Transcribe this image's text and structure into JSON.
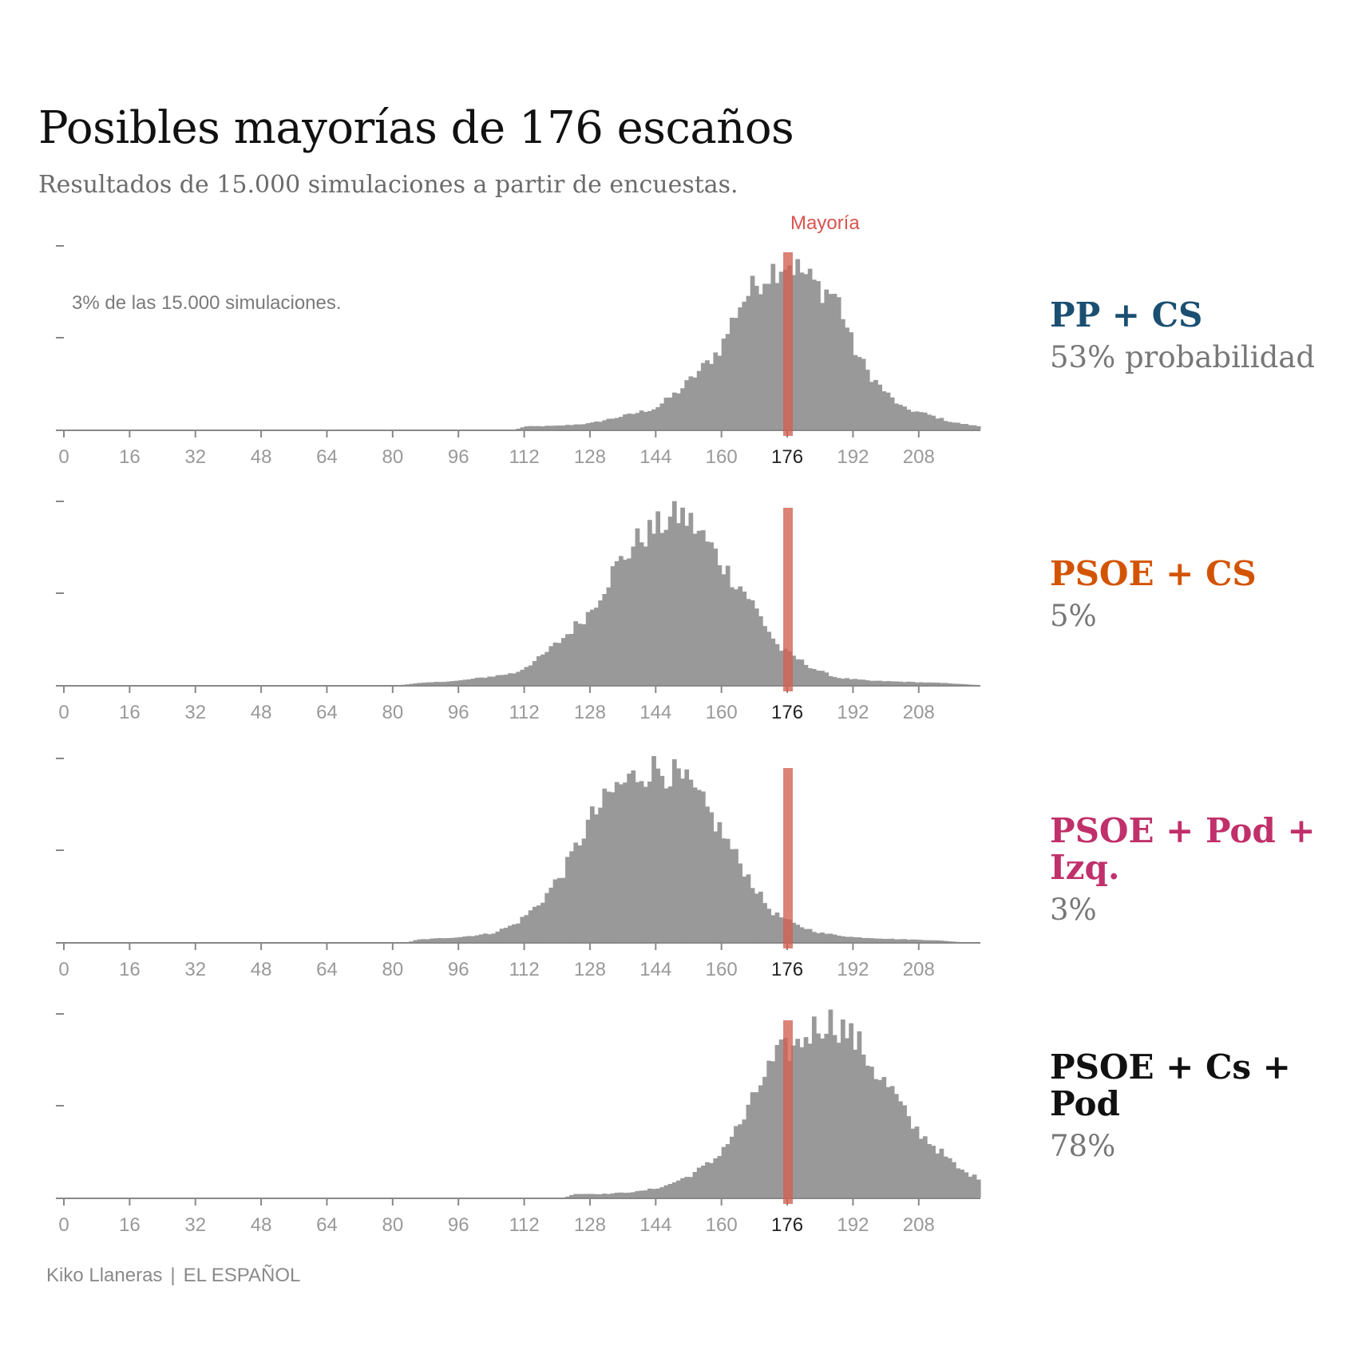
{
  "header": {
    "title": "Posibles mayorías de 176 escaños",
    "subtitle": "Resultados de 15.000 simulaciones a partir de encuestas."
  },
  "annotations": {
    "majority_label": "Mayoría",
    "unit_note": "3% de las 15.000 simulaciones."
  },
  "credit": {
    "author": "Kiko Llaneras",
    "separator": "|",
    "outlet": "EL ESPAÑOL"
  },
  "colors": {
    "bars": "#999999",
    "majority": "#d35f4f",
    "axis": "#888888",
    "tick_label": "#999999",
    "tick_label_majority": "#222222"
  },
  "chart_data": [
    {
      "type": "bar",
      "name": "PP + CS",
      "probability": "53% probabilidad",
      "color": "#1b4f72",
      "x_ticks": [
        0,
        16,
        32,
        48,
        64,
        80,
        96,
        112,
        128,
        144,
        160,
        176,
        192,
        208
      ],
      "xlim": [
        0,
        223
      ],
      "majority": 176,
      "y_unit": "% de las 15.000 simulaciones",
      "y_ticks": [
        0,
        1.5,
        3
      ],
      "profile": [
        [
          110,
          0
        ],
        [
          112,
          0.05
        ],
        [
          120,
          0.06
        ],
        [
          128,
          0.1
        ],
        [
          138,
          0.25
        ],
        [
          144,
          0.35
        ],
        [
          150,
          0.65
        ],
        [
          156,
          1.05
        ],
        [
          160,
          1.35
        ],
        [
          164,
          2.0
        ],
        [
          168,
          2.35
        ],
        [
          172,
          2.6
        ],
        [
          176,
          2.75
        ],
        [
          180,
          2.55
        ],
        [
          184,
          2.3
        ],
        [
          188,
          2.2
        ],
        [
          192,
          1.35
        ],
        [
          196,
          0.9
        ],
        [
          200,
          0.6
        ],
        [
          204,
          0.35
        ],
        [
          210,
          0.25
        ],
        [
          216,
          0.12
        ],
        [
          223,
          0.05
        ]
      ]
    },
    {
      "type": "bar",
      "name": "PSOE + CS",
      "probability": "5%",
      "color": "#d35400",
      "x_ticks": [
        0,
        16,
        32,
        48,
        64,
        80,
        96,
        112,
        128,
        144,
        160,
        176,
        192,
        208
      ],
      "xlim": [
        0,
        223
      ],
      "majority": 176,
      "y_unit": "% de las 15.000 simulaciones",
      "y_ticks": [
        0,
        1.5,
        3
      ],
      "profile": [
        [
          82,
          0
        ],
        [
          86,
          0.03
        ],
        [
          96,
          0.07
        ],
        [
          104,
          0.14
        ],
        [
          110,
          0.2
        ],
        [
          116,
          0.45
        ],
        [
          122,
          0.8
        ],
        [
          128,
          1.2
        ],
        [
          134,
          1.9
        ],
        [
          140,
          2.4
        ],
        [
          146,
          2.65
        ],
        [
          150,
          2.8
        ],
        [
          154,
          2.55
        ],
        [
          158,
          2.2
        ],
        [
          162,
          1.8
        ],
        [
          166,
          1.5
        ],
        [
          170,
          1.05
        ],
        [
          174,
          0.6
        ],
        [
          178,
          0.45
        ],
        [
          182,
          0.28
        ],
        [
          188,
          0.12
        ],
        [
          196,
          0.07
        ],
        [
          206,
          0.05
        ],
        [
          215,
          0.03
        ],
        [
          222,
          0
        ]
      ]
    },
    {
      "type": "bar",
      "name": "PSOE + Pod + Izq.",
      "probability": "3%",
      "color": "#c0306a",
      "x_ticks": [
        0,
        16,
        32,
        48,
        64,
        80,
        96,
        112,
        128,
        144,
        160,
        176,
        192,
        208
      ],
      "xlim": [
        0,
        223
      ],
      "majority": 176,
      "y_unit": "% de las 15.000 simulaciones",
      "y_ticks": [
        0,
        1.5,
        3
      ],
      "profile": [
        [
          84,
          0
        ],
        [
          86,
          0.04
        ],
        [
          96,
          0.08
        ],
        [
          104,
          0.14
        ],
        [
          110,
          0.3
        ],
        [
          116,
          0.65
        ],
        [
          122,
          1.2
        ],
        [
          128,
          2.0
        ],
        [
          134,
          2.5
        ],
        [
          140,
          2.75
        ],
        [
          144,
          2.85
        ],
        [
          148,
          2.75
        ],
        [
          152,
          2.55
        ],
        [
          156,
          2.2
        ],
        [
          160,
          1.8
        ],
        [
          164,
          1.35
        ],
        [
          168,
          0.9
        ],
        [
          172,
          0.5
        ],
        [
          178,
          0.28
        ],
        [
          184,
          0.15
        ],
        [
          192,
          0.08
        ],
        [
          202,
          0.05
        ],
        [
          212,
          0.03
        ],
        [
          218,
          0
        ]
      ]
    },
    {
      "type": "bar",
      "name": "PSOE + Cs + Pod",
      "probability": "78%",
      "color": "#111111",
      "x_ticks": [
        0,
        16,
        32,
        48,
        64,
        80,
        96,
        112,
        128,
        144,
        160,
        176,
        192,
        208
      ],
      "xlim": [
        0,
        223
      ],
      "majority": 176,
      "y_unit": "% de las 15.000 simulaciones",
      "y_ticks": [
        0,
        1.5,
        3
      ],
      "profile": [
        [
          122,
          0
        ],
        [
          124,
          0.06
        ],
        [
          132,
          0.06
        ],
        [
          140,
          0.1
        ],
        [
          146,
          0.18
        ],
        [
          152,
          0.35
        ],
        [
          158,
          0.6
        ],
        [
          162,
          0.95
        ],
        [
          166,
          1.35
        ],
        [
          170,
          1.95
        ],
        [
          174,
          2.35
        ],
        [
          178,
          2.45
        ],
        [
          182,
          2.75
        ],
        [
          186,
          2.9
        ],
        [
          190,
          2.75
        ],
        [
          194,
          2.45
        ],
        [
          198,
          2.0
        ],
        [
          202,
          1.7
        ],
        [
          206,
          1.2
        ],
        [
          210,
          0.95
        ],
        [
          214,
          0.7
        ],
        [
          218,
          0.45
        ],
        [
          223,
          0.3
        ]
      ]
    }
  ]
}
